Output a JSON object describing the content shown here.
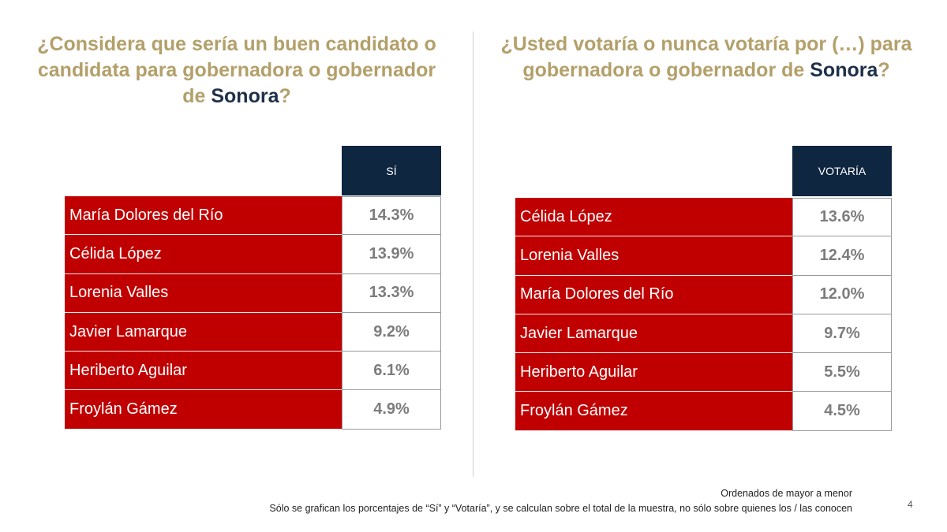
{
  "left": {
    "title": {
      "part1": "¿Considera que sería un buen candidato o candidata para gobernadora o gobernador de ",
      "highlight": "Sonora",
      "part2": "?"
    },
    "column_header": "SÍ",
    "rows": [
      {
        "name": "María Dolores del Río",
        "value": "14.3%"
      },
      {
        "name": "Célida López",
        "value": "13.9%"
      },
      {
        "name": "Lorenia Valles",
        "value": "13.3%"
      },
      {
        "name": "Javier Lamarque",
        "value": "9.2%"
      },
      {
        "name": "Heriberto Aguilar",
        "value": "6.1%"
      },
      {
        "name": "Froylán Gámez",
        "value": "4.9%"
      }
    ]
  },
  "right": {
    "title": {
      "part1": "¿Usted votaría o nunca votaría por (…) para gobernadora o gobernador de ",
      "highlight": "Sonora",
      "part2": "?"
    },
    "column_header": "VOTARÍA",
    "rows": [
      {
        "name": "Célida López",
        "value": "13.6%"
      },
      {
        "name": "Lorenia Valles",
        "value": "12.4%"
      },
      {
        "name": "María Dolores del Río",
        "value": "12.0%"
      },
      {
        "name": "Javier Lamarque",
        "value": "9.7%"
      },
      {
        "name": "Heriberto Aguilar",
        "value": "5.5%"
      },
      {
        "name": "Froylán Gámez",
        "value": "4.5%"
      }
    ]
  },
  "footnotes": {
    "line1": "Ordenados de mayor a menor",
    "line2": "Sólo se grafican los porcentajes de “Sí” y “Votaría”, y se calculan sobre el total de la muestra, no sólo sobre quienes los / las conocen"
  },
  "page_number": "4",
  "colors": {
    "title_gold": "#b3a06a",
    "highlight_navy": "#1f3048",
    "header_navy": "#0f2640",
    "row_red": "#c00000",
    "value_gray": "#7c7c7c"
  }
}
